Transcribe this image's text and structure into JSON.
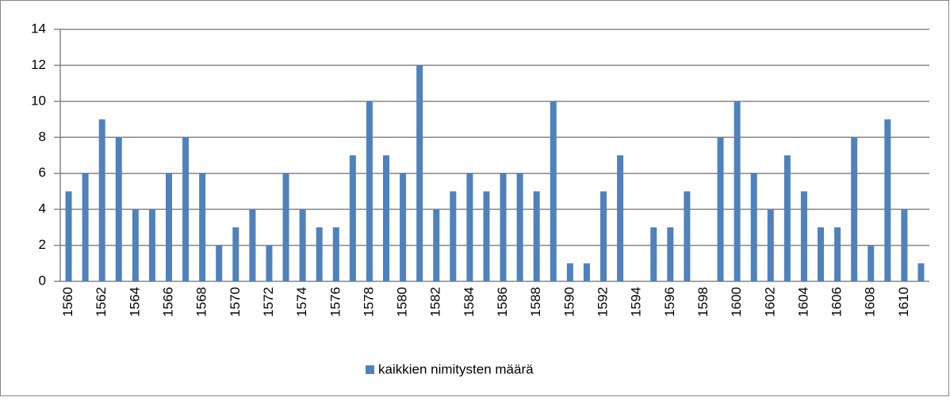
{
  "chart_data": {
    "type": "bar",
    "categories": [
      "1560",
      null,
      "1562",
      null,
      "1564",
      null,
      "1566",
      null,
      "1568",
      null,
      "1570",
      null,
      "1572",
      null,
      "1574",
      null,
      "1576",
      null,
      "1578",
      null,
      "1580",
      null,
      "1582",
      null,
      "1584",
      null,
      "1586",
      null,
      "1588",
      null,
      "1590",
      null,
      "1592",
      null,
      "1594",
      null,
      "1596",
      null,
      "1598",
      null,
      "1600",
      null,
      "1602",
      null,
      "1604",
      null,
      "1606",
      null,
      "1608",
      null,
      "1610",
      null
    ],
    "series": [
      {
        "name": "kaikkien nimitysten määrä",
        "color": "#4f81bd",
        "values": [
          5,
          6,
          9,
          8,
          4,
          4,
          6,
          8,
          6,
          2,
          3,
          4,
          2,
          6,
          4,
          3,
          3,
          7,
          10,
          7,
          6,
          12,
          4,
          5,
          6,
          5,
          6,
          6,
          5,
          10,
          1,
          1,
          5,
          7,
          0,
          3,
          3,
          5,
          0,
          8,
          10,
          6,
          4,
          7,
          5,
          3,
          3,
          8,
          2,
          9,
          4,
          1
        ]
      }
    ],
    "ylim": [
      0,
      14
    ],
    "yticks": [
      0,
      2,
      4,
      6,
      8,
      10,
      12,
      14
    ],
    "grid": true,
    "legend": "bottom"
  }
}
